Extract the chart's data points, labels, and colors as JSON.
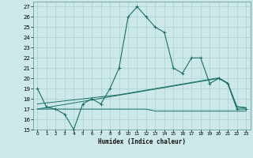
{
  "xlabel": "Humidex (Indice chaleur)",
  "bg_color": "#cce8e8",
  "line_color": "#1a6e6a",
  "grid_color": "#a8d0d0",
  "x_data": [
    0,
    1,
    2,
    3,
    4,
    5,
    6,
    7,
    8,
    9,
    10,
    11,
    12,
    13,
    14,
    15,
    16,
    17,
    18,
    19,
    20,
    21,
    22,
    23
  ],
  "main_y": [
    19,
    17.2,
    17,
    16.5,
    15,
    17.5,
    18,
    17.5,
    19,
    21,
    26,
    27,
    26,
    25,
    24.5,
    21,
    20.5,
    22,
    22,
    19.5,
    20,
    19.5,
    17,
    17
  ],
  "line_flat_y": [
    17,
    17,
    17,
    17,
    17,
    17,
    17,
    17,
    17,
    17,
    17,
    17,
    17,
    16.8,
    16.8,
    16.8,
    16.8,
    16.8,
    16.8,
    16.8,
    16.8,
    16.8,
    16.8,
    16.8
  ],
  "line_trend1_y": [
    17,
    17.15,
    17.3,
    17.45,
    17.6,
    17.75,
    17.9,
    18.05,
    18.2,
    18.35,
    18.5,
    18.65,
    18.8,
    18.95,
    19.1,
    19.25,
    19.4,
    19.55,
    19.7,
    19.85,
    20.0,
    19.5,
    17.2,
    17.1
  ],
  "line_trend2_y": [
    17.5,
    17.6,
    17.7,
    17.8,
    17.9,
    18.0,
    18.1,
    18.2,
    18.3,
    18.4,
    18.55,
    18.7,
    18.85,
    19.0,
    19.15,
    19.3,
    19.45,
    19.6,
    19.75,
    19.9,
    20.05,
    19.55,
    17.25,
    17.15
  ],
  "ylim": [
    15,
    27.5
  ],
  "xlim": [
    -0.5,
    23.5
  ],
  "yticks": [
    15,
    16,
    17,
    18,
    19,
    20,
    21,
    22,
    23,
    24,
    25,
    26,
    27
  ],
  "xticks": [
    0,
    1,
    2,
    3,
    4,
    5,
    6,
    7,
    8,
    9,
    10,
    11,
    12,
    13,
    14,
    15,
    16,
    17,
    18,
    19,
    20,
    21,
    22,
    23
  ]
}
